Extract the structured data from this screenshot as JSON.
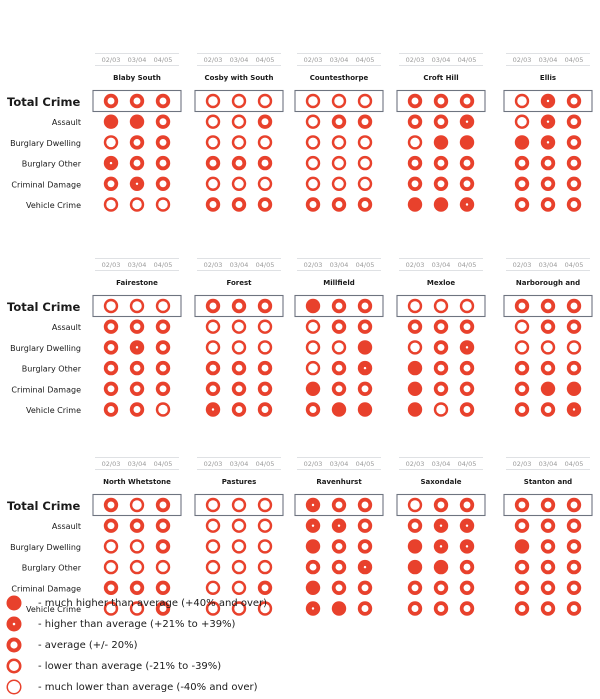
{
  "colors": {
    "accent": "#e8412c",
    "frame": "#6e7480",
    "year_text": "#9a9a9a",
    "text": "#1a1a1a"
  },
  "years": [
    "02/03",
    "03/04",
    "04/05"
  ],
  "row_labels": {
    "total": "Total Crime",
    "items": [
      "Assault",
      "Burglary Dwelling",
      "Burglary Other",
      "Criminal Damage",
      "Vehicle Crime"
    ]
  },
  "chart_data": {
    "type": "table",
    "description_key": "level codes: 1 = much higher than average, 2 = higher than average, 3 = average, 4 = lower than average, 5 = much lower than average",
    "columns": [
      "02/03",
      "03/04",
      "04/05"
    ],
    "rows": [
      "Total Crime",
      "Assault",
      "Burglary Dwelling",
      "Burglary Other",
      "Criminal Damage",
      "Vehicle Crime"
    ],
    "areas": [
      {
        "name": "Blaby South",
        "levels": [
          [
            3,
            3,
            3
          ],
          [
            1,
            1,
            3
          ],
          [
            4,
            3,
            3
          ],
          [
            2,
            3,
            3
          ],
          [
            3,
            2,
            3
          ],
          [
            4,
            4,
            4
          ]
        ]
      },
      {
        "name": "Cosby with South",
        "levels": [
          [
            4,
            4,
            4
          ],
          [
            4,
            4,
            3
          ],
          [
            4,
            4,
            4
          ],
          [
            3,
            3,
            3
          ],
          [
            4,
            4,
            4
          ],
          [
            3,
            3,
            3
          ]
        ]
      },
      {
        "name": "Countesthorpe",
        "levels": [
          [
            4,
            4,
            4
          ],
          [
            4,
            3,
            3
          ],
          [
            4,
            4,
            4
          ],
          [
            4,
            4,
            4
          ],
          [
            4,
            4,
            4
          ],
          [
            3,
            3,
            3
          ]
        ]
      },
      {
        "name": "Croft Hill",
        "levels": [
          [
            3,
            3,
            3
          ],
          [
            3,
            3,
            2
          ],
          [
            4,
            1,
            1
          ],
          [
            3,
            3,
            3
          ],
          [
            3,
            3,
            3
          ],
          [
            1,
            1,
            2
          ]
        ]
      },
      {
        "name": "Ellis",
        "levels": [
          [
            4,
            2,
            3
          ],
          [
            4,
            2,
            3
          ],
          [
            1,
            2,
            3
          ],
          [
            3,
            3,
            3
          ],
          [
            3,
            3,
            3
          ],
          [
            3,
            3,
            3
          ]
        ]
      },
      {
        "name": "Fairestone",
        "levels": [
          [
            4,
            4,
            4
          ],
          [
            3,
            3,
            3
          ],
          [
            3,
            2,
            3
          ],
          [
            3,
            3,
            3
          ],
          [
            3,
            3,
            3
          ],
          [
            3,
            3,
            4
          ]
        ]
      },
      {
        "name": "Forest",
        "levels": [
          [
            3,
            3,
            3
          ],
          [
            4,
            4,
            4
          ],
          [
            4,
            4,
            4
          ],
          [
            3,
            3,
            3
          ],
          [
            3,
            3,
            3
          ],
          [
            2,
            3,
            3
          ]
        ]
      },
      {
        "name": "Millfield",
        "levels": [
          [
            1,
            3,
            3
          ],
          [
            4,
            3,
            3
          ],
          [
            4,
            4,
            1
          ],
          [
            4,
            3,
            2
          ],
          [
            1,
            3,
            3
          ],
          [
            3,
            1,
            1
          ]
        ]
      },
      {
        "name": "Mexloe",
        "levels": [
          [
            4,
            4,
            4
          ],
          [
            3,
            3,
            3
          ],
          [
            4,
            3,
            2
          ],
          [
            1,
            3,
            3
          ],
          [
            1,
            3,
            3
          ],
          [
            1,
            4,
            3
          ]
        ]
      },
      {
        "name": "Narborough and",
        "levels": [
          [
            3,
            3,
            3
          ],
          [
            4,
            3,
            3
          ],
          [
            4,
            4,
            4
          ],
          [
            3,
            3,
            3
          ],
          [
            3,
            1,
            1
          ],
          [
            3,
            3,
            2
          ]
        ]
      },
      {
        "name": "North Whetstone",
        "levels": [
          [
            3,
            4,
            3
          ],
          [
            3,
            3,
            3
          ],
          [
            4,
            4,
            3
          ],
          [
            4,
            4,
            4
          ],
          [
            3,
            3,
            3
          ],
          [
            4,
            4,
            3
          ]
        ]
      },
      {
        "name": "Pastures",
        "levels": [
          [
            4,
            4,
            4
          ],
          [
            4,
            4,
            4
          ],
          [
            4,
            4,
            4
          ],
          [
            4,
            4,
            4
          ],
          [
            4,
            4,
            3
          ],
          [
            4,
            4,
            4
          ]
        ]
      },
      {
        "name": "Ravenhurst",
        "levels": [
          [
            2,
            3,
            3
          ],
          [
            2,
            2,
            3
          ],
          [
            1,
            3,
            3
          ],
          [
            3,
            3,
            2
          ],
          [
            1,
            3,
            3
          ],
          [
            2,
            1,
            3
          ]
        ]
      },
      {
        "name": "Saxondale",
        "levels": [
          [
            4,
            3,
            3
          ],
          [
            3,
            2,
            2
          ],
          [
            1,
            2,
            2
          ],
          [
            1,
            1,
            3
          ],
          [
            3,
            3,
            3
          ],
          [
            3,
            3,
            3
          ]
        ]
      },
      {
        "name": "Stanton and",
        "levels": [
          [
            3,
            3,
            3
          ],
          [
            3,
            3,
            3
          ],
          [
            1,
            3,
            3
          ],
          [
            3,
            3,
            3
          ],
          [
            3,
            3,
            3
          ],
          [
            3,
            3,
            3
          ]
        ]
      }
    ]
  },
  "legend": [
    {
      "level": 1,
      "label": "- much higher than average (+40% and over)"
    },
    {
      "level": 2,
      "label": "- higher than average (+21% to +39%)"
    },
    {
      "level": 3,
      "label": "- average (+/- 20%)"
    },
    {
      "level": 4,
      "label": "- lower than average (-21% to -39%)"
    },
    {
      "level": 5,
      "label": "- much lower than average (-40% and over)"
    }
  ]
}
